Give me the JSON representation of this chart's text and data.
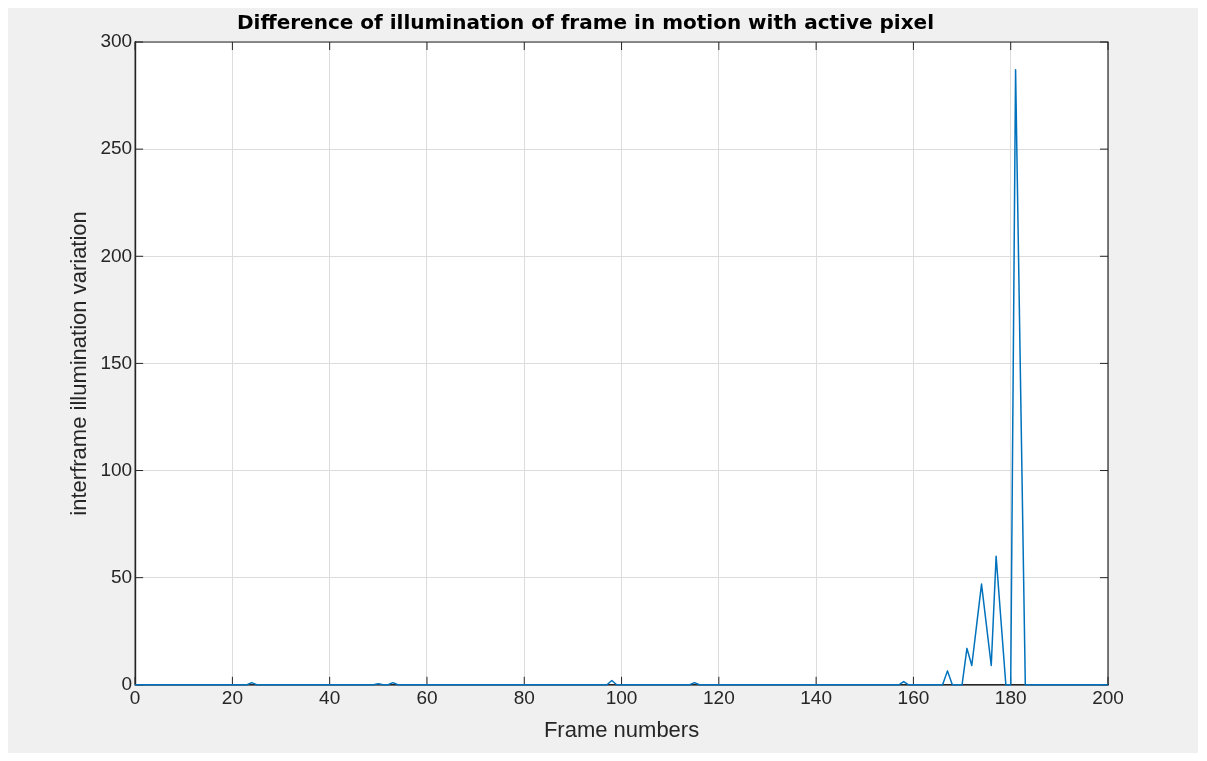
{
  "chart_data": {
    "type": "line",
    "title": "Difference of illumination of frame in motion with active pixel",
    "xlabel": "Frame numbers",
    "ylabel": "interframe illumination variation",
    "x": [
      0,
      23,
      24,
      25,
      49,
      50,
      51,
      52,
      53,
      54,
      97,
      98,
      99,
      114,
      115,
      116,
      157,
      158,
      159,
      166,
      167,
      168,
      169,
      170,
      171,
      172,
      173,
      174,
      175,
      176,
      177,
      178,
      179,
      180,
      181,
      183,
      200
    ],
    "series": [
      {
        "color": "#0072bd",
        "values": [
          0,
          0,
          1,
          0,
          0,
          0.5,
          0,
          0,
          1,
          0,
          0,
          2,
          0,
          0,
          1,
          0,
          0,
          1.5,
          0,
          0,
          6.5,
          0,
          0,
          0,
          17,
          9,
          28,
          47,
          28,
          9,
          60,
          30,
          0,
          0,
          287,
          0,
          0
        ]
      }
    ],
    "xlim": [
      0,
      200
    ],
    "xticks": [
      0,
      20,
      40,
      60,
      80,
      100,
      120,
      140,
      160,
      180,
      200
    ],
    "ylim": [
      0,
      300
    ],
    "yticks": [
      0,
      50,
      100,
      150,
      200,
      250,
      300
    ],
    "grid": true,
    "legend": false,
    "marker": "none",
    "line_style": "solid"
  }
}
